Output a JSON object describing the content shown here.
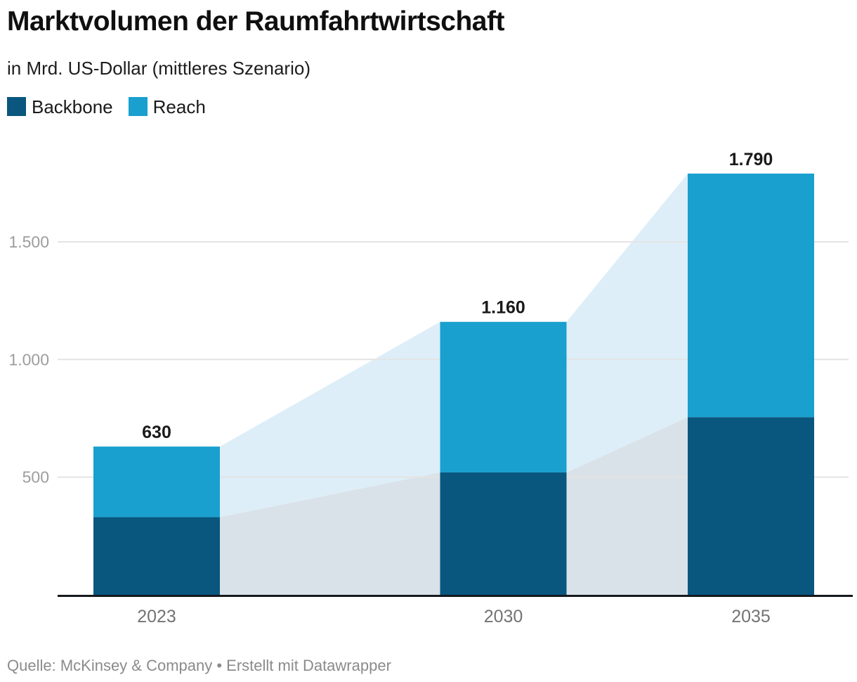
{
  "header": {
    "title": "Marktvolumen der Raumfahrtwirtschaft",
    "subtitle": "in Mrd. US-Dollar (mittleres Szenario)"
  },
  "legend": [
    {
      "label": "Backbone",
      "color": "#09567f"
    },
    {
      "label": "Reach",
      "color": "#19a0ce"
    }
  ],
  "footer": {
    "text": "Quelle: McKinsey & Company • Erstellt mit Datawrapper"
  },
  "chart_data": {
    "type": "bar",
    "stacked": true,
    "title": "Marktvolumen der Raumfahrtwirtschaft",
    "subtitle": "in Mrd. US-Dollar (mittleres Szenario)",
    "unit": "Mrd. US-Dollar",
    "categories": [
      "2023",
      "2030",
      "2035"
    ],
    "x_years": [
      2023,
      2030,
      2035
    ],
    "series": [
      {
        "name": "Backbone",
        "color": "#09567f",
        "band_color": "#d9e2e8",
        "values": [
          330,
          520,
          755
        ]
      },
      {
        "name": "Reach",
        "color": "#19a0ce",
        "band_color": "#ddeef8",
        "values": [
          300,
          640,
          1035
        ]
      }
    ],
    "totals": [
      630,
      1160,
      1790
    ],
    "total_labels": [
      "630",
      "1.160",
      "1.790"
    ],
    "y_ticks": [
      {
        "value": 500,
        "label": "500"
      },
      {
        "value": 1000,
        "label": "1.000"
      },
      {
        "value": 1500,
        "label": "1.500"
      }
    ],
    "ylim": [
      0,
      1790
    ],
    "grid": true,
    "legend_position": "top-left",
    "annotation_style": "totals above bars; light area bands connect stacked segments between bars"
  }
}
